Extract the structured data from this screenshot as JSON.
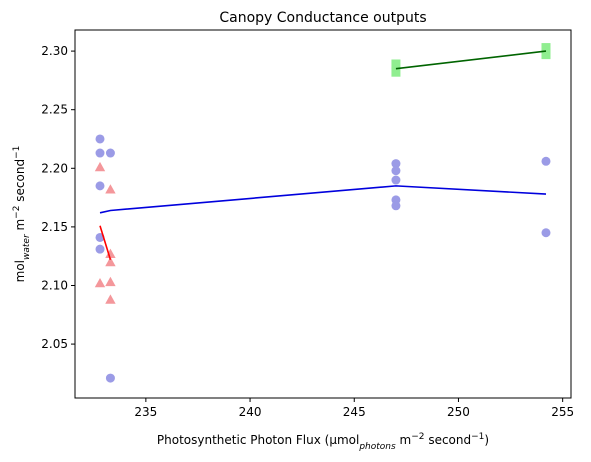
{
  "chart_data": {
    "type": "scatter",
    "title": "Canopy Conductance outputs",
    "xlabel": {
      "main": "Photosynthetic Photon Flux (μmol",
      "sub": "photons",
      "rest": " m",
      "sup1": "−2",
      "rest2": " second",
      "sup2": "−1",
      "close": ")"
    },
    "ylabel": {
      "main": "mol",
      "sub": "water",
      "rest": " m",
      "sup1": "−2",
      "rest2": " second",
      "sup2": "−1"
    },
    "xlim": [
      231.6,
      255.4
    ],
    "ylim": [
      2.004,
      2.318
    ],
    "xticks": [
      235,
      240,
      245,
      250,
      255
    ],
    "yticks": [
      2.05,
      2.1,
      2.15,
      2.2,
      2.25,
      2.3
    ],
    "xtick_labels": [
      "235",
      "240",
      "245",
      "250",
      "255"
    ],
    "ytick_labels": [
      "2.05",
      "2.10",
      "2.15",
      "2.20",
      "2.25",
      "2.30"
    ],
    "colors": {
      "circles": "#9b9be6",
      "triangles": "#f4979b",
      "squares": "#90ee90",
      "blue_line": "#0000dd",
      "red_line": "#ff0000",
      "green_line": "#006400"
    },
    "series": [
      {
        "marker": "circle",
        "color_key": "circles",
        "points": [
          [
            232.8,
            2.225
          ],
          [
            232.8,
            2.213
          ],
          [
            233.3,
            2.213
          ],
          [
            232.8,
            2.185
          ],
          [
            232.8,
            2.141
          ],
          [
            232.8,
            2.131
          ],
          [
            233.3,
            2.021
          ],
          [
            247.0,
            2.204
          ],
          [
            247.0,
            2.198
          ],
          [
            247.0,
            2.19
          ],
          [
            247.0,
            2.173
          ],
          [
            247.0,
            2.168
          ],
          [
            254.2,
            2.206
          ],
          [
            254.2,
            2.145
          ]
        ]
      },
      {
        "marker": "triangle",
        "color_key": "triangles",
        "points": [
          [
            232.8,
            2.201
          ],
          [
            233.3,
            2.182
          ],
          [
            233.3,
            2.127
          ],
          [
            233.3,
            2.12
          ],
          [
            232.8,
            2.102
          ],
          [
            233.3,
            2.103
          ],
          [
            233.3,
            2.088
          ]
        ]
      },
      {
        "marker": "square",
        "color_key": "squares",
        "points": [
          [
            247.0,
            2.289
          ],
          [
            247.0,
            2.282
          ],
          [
            254.2,
            2.303
          ],
          [
            254.2,
            2.297
          ]
        ]
      }
    ],
    "lines": [
      {
        "color_key": "blue_line",
        "points": [
          [
            232.8,
            2.162
          ],
          [
            233.3,
            2.164
          ],
          [
            247.0,
            2.185
          ],
          [
            254.2,
            2.178
          ]
        ]
      },
      {
        "color_key": "red_line",
        "points": [
          [
            232.8,
            2.151
          ],
          [
            233.3,
            2.122
          ]
        ]
      },
      {
        "color_key": "green_line",
        "points": [
          [
            247.0,
            2.285
          ],
          [
            254.2,
            2.3
          ]
        ]
      }
    ]
  }
}
